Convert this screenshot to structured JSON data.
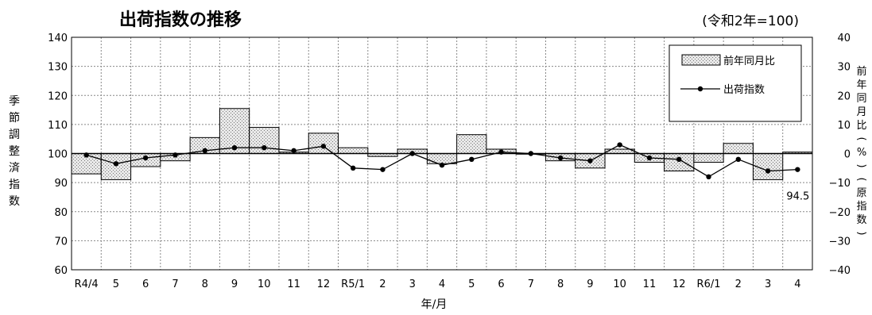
{
  "chart_data": {
    "type": "bar",
    "title": "出荷指数の推移",
    "subtitle": "(令和2年=100)",
    "xlabel": "年/月",
    "ylabel": "季節調整済指数",
    "y2label": "前年同月比(%)(原指数)",
    "categories": [
      "R4/4",
      "5",
      "6",
      "7",
      "8",
      "9",
      "10",
      "11",
      "12",
      "R5/1",
      "2",
      "3",
      "4",
      "5",
      "6",
      "7",
      "8",
      "9",
      "10",
      "11",
      "12",
      "R6/1",
      "2",
      "3",
      "4"
    ],
    "ylim": [
      60,
      140
    ],
    "y2lim": [
      -40,
      40
    ],
    "yticks": [
      60,
      70,
      80,
      90,
      100,
      110,
      120,
      130,
      140
    ],
    "y2ticks": [
      -40,
      -30,
      -20,
      -10,
      0,
      10,
      20,
      30,
      40
    ],
    "grid": true,
    "legend_position": "top-right",
    "series": [
      {
        "name": "前年同月比",
        "kind": "bar",
        "axis": "right",
        "values": [
          -7,
          -9,
          -4.5,
          -2.5,
          5.5,
          15.5,
          9,
          0.5,
          7,
          2,
          -1,
          1.5,
          -3.5,
          6.5,
          1.5,
          0,
          -2.5,
          -5,
          1.5,
          -3,
          -6,
          -3,
          3.5,
          -9,
          0.5
        ]
      },
      {
        "name": "出荷指数",
        "kind": "line",
        "axis": "left",
        "values": [
          99.5,
          96.5,
          98.5,
          99.5,
          101,
          102,
          102,
          101,
          102.5,
          95,
          94.5,
          100,
          96,
          98,
          100.5,
          100,
          98.5,
          97.5,
          103,
          98.5,
          98,
          92,
          98,
          94,
          94.5
        ]
      }
    ],
    "annotations": [
      {
        "text": "94.5",
        "category_index": 24
      }
    ]
  }
}
